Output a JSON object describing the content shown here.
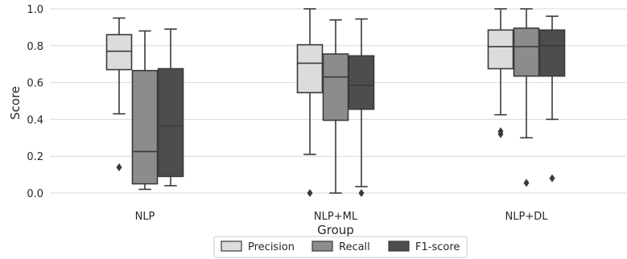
{
  "chart_data": {
    "type": "box",
    "xlabel": "Group",
    "ylabel": "Score",
    "ylim": [
      -0.05,
      1.03
    ],
    "yticks": [
      0.0,
      0.2,
      0.4,
      0.6,
      0.8,
      1.0
    ],
    "ytick_labels": [
      "0.0",
      "0.2",
      "0.4",
      "0.6",
      "0.8",
      "1.0"
    ],
    "grid": "horizontal",
    "legend_position": "bottom-center",
    "categories": [
      "NLP",
      "NLP+ML",
      "NLP+DL"
    ],
    "series": [
      {
        "name": "Precision",
        "color": "#dcdcdc",
        "boxes": [
          {
            "whislo": 0.43,
            "q1": 0.67,
            "med": 0.77,
            "q3": 0.86,
            "whishi": 0.95,
            "fliers": [
              0.14
            ]
          },
          {
            "whislo": 0.21,
            "q1": 0.545,
            "med": 0.705,
            "q3": 0.805,
            "whishi": 1.0,
            "fliers": [
              0.0
            ]
          },
          {
            "whislo": 0.425,
            "q1": 0.675,
            "med": 0.795,
            "q3": 0.885,
            "whishi": 1.0,
            "fliers": [
              0.32,
              0.335
            ]
          }
        ]
      },
      {
        "name": "Recall",
        "color": "#8c8c8c",
        "boxes": [
          {
            "whislo": 0.02,
            "q1": 0.05,
            "med": 0.225,
            "q3": 0.665,
            "whishi": 0.88,
            "fliers": []
          },
          {
            "whislo": 0.0,
            "q1": 0.395,
            "med": 0.63,
            "q3": 0.755,
            "whishi": 0.94,
            "fliers": []
          },
          {
            "whislo": 0.3,
            "q1": 0.635,
            "med": 0.795,
            "q3": 0.895,
            "whishi": 1.0,
            "fliers": [
              0.055
            ]
          }
        ]
      },
      {
        "name": "F1-score",
        "color": "#4d4d4d",
        "boxes": [
          {
            "whislo": 0.04,
            "q1": 0.09,
            "med": 0.365,
            "q3": 0.675,
            "whishi": 0.89,
            "fliers": []
          },
          {
            "whislo": 0.035,
            "q1": 0.455,
            "med": 0.585,
            "q3": 0.745,
            "whishi": 0.945,
            "fliers": [
              0.0
            ]
          },
          {
            "whislo": 0.4,
            "q1": 0.635,
            "med": 0.8,
            "q3": 0.885,
            "whishi": 0.96,
            "fliers": [
              0.08
            ]
          }
        ]
      }
    ]
  }
}
